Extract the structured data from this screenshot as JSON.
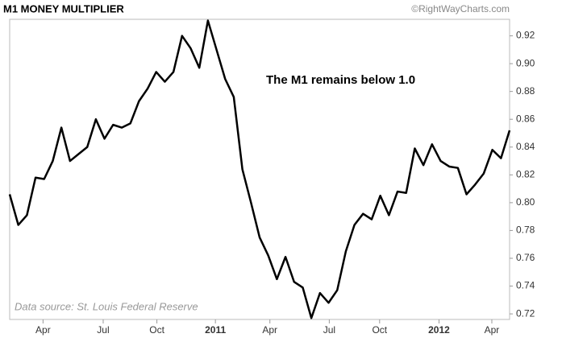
{
  "chart_data": {
    "type": "line",
    "title": "M1 MONEY MULTIPLIER",
    "credit": "©RightWayCharts.com",
    "annotation": "The M1 remains below 1.0",
    "source": "Data source: St. Louis Federal Reserve",
    "color": "#000000",
    "grid": false,
    "values": [
      0.806,
      0.784,
      0.791,
      0.818,
      0.817,
      0.83,
      0.854,
      0.83,
      0.835,
      0.84,
      0.86,
      0.846,
      0.856,
      0.854,
      0.857,
      0.873,
      0.882,
      0.894,
      0.887,
      0.894,
      0.92,
      0.911,
      0.897,
      0.931,
      0.91,
      0.889,
      0.876,
      0.824,
      0.8,
      0.775,
      0.762,
      0.745,
      0.761,
      0.743,
      0.739,
      0.717,
      0.735,
      0.728,
      0.737,
      0.765,
      0.784,
      0.792,
      0.788,
      0.805,
      0.791,
      0.808,
      0.807,
      0.839,
      0.827,
      0.842,
      0.83,
      0.826,
      0.825,
      0.806,
      0.813,
      0.821,
      0.838,
      0.832,
      0.852
    ],
    "xlim": [
      0,
      58
    ],
    "xticks": [
      {
        "value": 3.87,
        "label": "Apr"
      },
      {
        "value": 10.85,
        "label": "Jul"
      },
      {
        "value": 17.08,
        "label": "Oct"
      },
      {
        "value": 23.87,
        "label": "2011"
      },
      {
        "value": 30.19,
        "label": "Apr"
      },
      {
        "value": 37.08,
        "label": "Jul"
      },
      {
        "value": 42.92,
        "label": "Oct"
      },
      {
        "value": 49.81,
        "label": "2012"
      },
      {
        "value": 55.94,
        "label": "Apr"
      }
    ],
    "ylim": [
      0.716,
      0.94
    ],
    "yticks": [
      0.72,
      0.74,
      0.76,
      0.78,
      {
        "value": 0.8,
        "label": "0.80"
      },
      0.82,
      0.84,
      0.86,
      0.88,
      {
        "value": 0.9,
        "label": "0.90"
      },
      0.92
    ]
  }
}
